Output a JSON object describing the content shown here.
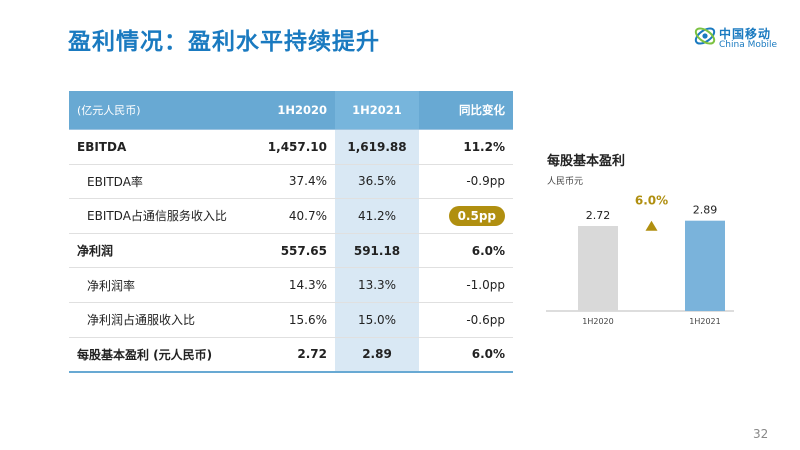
{
  "page_title": "盈利情况：盈利水平持续提升",
  "logo": {
    "cn": "中国移动",
    "en": "China Mobile"
  },
  "table": {
    "unit_label": "(亿元人民币)",
    "headers": [
      "1H2020",
      "1H2021",
      "同比变化"
    ],
    "rows": [
      {
        "label": "EBITDA",
        "v1": "1,457.10",
        "v2": "1,619.88",
        "chg": "11.2%"
      },
      {
        "label": "EBITDA率",
        "v1": "37.4%",
        "v2": "36.5%",
        "chg": "-0.9pp"
      },
      {
        "label": "EBITDA占通信服务收入比",
        "v1": "40.7%",
        "v2": "41.2%",
        "chg": "0.5pp"
      },
      {
        "label": "净利润",
        "v1": "557.65",
        "v2": "591.18",
        "chg": "6.0%"
      },
      {
        "label": "净利润率",
        "v1": "14.3%",
        "v2": "13.3%",
        "chg": "-1.0pp"
      },
      {
        "label": "净利润占通服收入比",
        "v1": "15.6%",
        "v2": "15.0%",
        "chg": "-0.6pp"
      },
      {
        "label": "每股基本盈利 (元人民币)",
        "v1": "2.72",
        "v2": "2.89",
        "chg": "6.0%"
      }
    ]
  },
  "chart_data": {
    "type": "bar",
    "title": "每股基本盈利",
    "ylabel": "人民币元",
    "categories": [
      "1H2020",
      "1H2021"
    ],
    "values": [
      2.72,
      2.89
    ],
    "value_labels": [
      "2.72",
      "2.89"
    ],
    "colors": [
      "#d9d9d9",
      "#7ab3db"
    ],
    "growth_label": "6.0%",
    "growth_color": "#b08f10",
    "ylim": [
      0,
      3.2
    ]
  },
  "page_number": "32"
}
